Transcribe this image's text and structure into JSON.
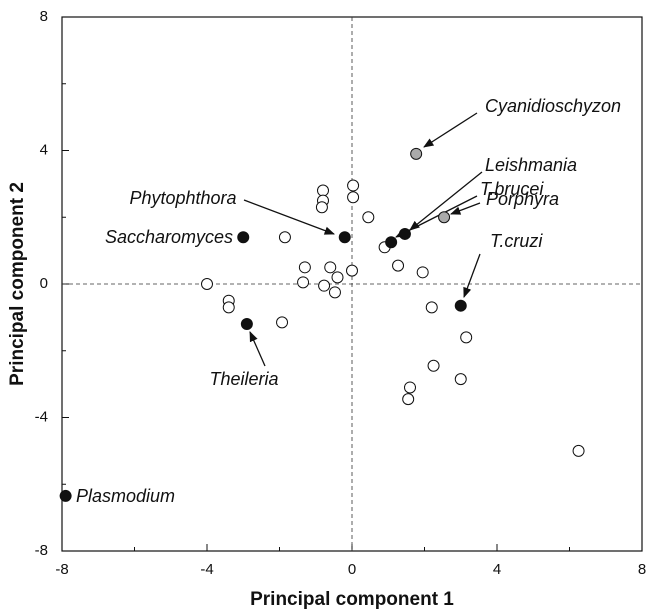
{
  "chart_data": {
    "type": "scatter",
    "xlabel": "Principal component 1",
    "ylabel": "Principal component 2",
    "xlim": [
      -8,
      8
    ],
    "ylim": [
      -8,
      8
    ],
    "xticks": [
      -8,
      -4,
      0,
      4,
      8
    ],
    "yticks": [
      -8,
      -4,
      0,
      4,
      8
    ],
    "series": [
      {
        "color": "#ffffff",
        "x": [
          -4.0,
          -3.4,
          -3.4,
          -1.85,
          -1.93,
          -1.3,
          -1.35,
          -0.8,
          -0.8,
          -0.83,
          -0.6,
          -0.77,
          -0.47,
          -0.4,
          0.03,
          0.03,
          0.0,
          0.45,
          0.9,
          1.27,
          1.95,
          2.2,
          2.25,
          1.6,
          1.55,
          3.15,
          3.0,
          6.25
        ],
        "values": [
          0.0,
          -0.5,
          -0.7,
          1.4,
          -1.15,
          0.5,
          0.05,
          2.8,
          2.5,
          2.3,
          0.5,
          -0.05,
          -0.25,
          0.2,
          2.95,
          2.6,
          0.4,
          2.0,
          1.1,
          0.55,
          0.35,
          -0.7,
          -2.45,
          -3.1,
          -3.45,
          -1.6,
          -2.85,
          -5.0
        ]
      },
      {
        "color": "#111111",
        "x": [
          -3.0,
          -0.2,
          1.08,
          1.46,
          3.0,
          -2.9,
          -7.9
        ],
        "values": [
          1.4,
          1.4,
          1.25,
          1.5,
          -0.65,
          -1.2,
          -6.35
        ],
        "labels": [
          "Saccharomyces",
          "Phytophthora",
          "T.brucei",
          "Leishmania",
          "T.cruzi",
          "Theileria",
          "Plasmodium"
        ]
      },
      {
        "color": "#aaaaaa",
        "x": [
          1.77,
          2.54
        ],
        "values": [
          3.9,
          2.0
        ],
        "labels": [
          "Cyanidioschyzon",
          "Porphyra"
        ]
      }
    ]
  }
}
